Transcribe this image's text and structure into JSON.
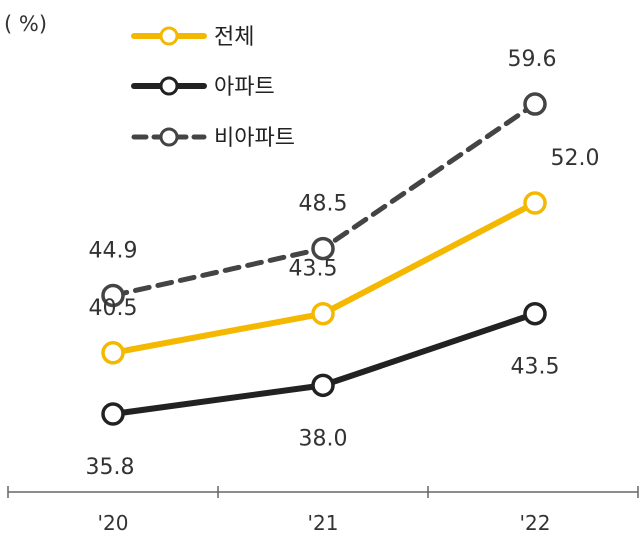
{
  "chart_data": {
    "type": "line",
    "unit_label": "( %)",
    "categories": [
      "'20",
      "'21",
      "'22"
    ],
    "ylim": [
      30,
      62
    ],
    "legend_position": "top",
    "series": [
      {
        "name": "전체",
        "values": [
          40.5,
          43.5,
          52.0
        ],
        "color": "#F5B800",
        "dashed": false
      },
      {
        "name": "아파트",
        "values": [
          35.8,
          38.0,
          43.5
        ],
        "color": "#222222",
        "dashed": false
      },
      {
        "name": "비아파트",
        "values": [
          44.9,
          48.5,
          59.6
        ],
        "color": "#444444",
        "dashed": true
      }
    ],
    "value_labels": [
      {
        "series": 0,
        "index": 0,
        "text": "40.5"
      },
      {
        "series": 0,
        "index": 1,
        "text": "43.5"
      },
      {
        "series": 0,
        "index": 2,
        "text": "52.0"
      },
      {
        "series": 1,
        "index": 0,
        "text": "35.8"
      },
      {
        "series": 1,
        "index": 1,
        "text": "38.0"
      },
      {
        "series": 1,
        "index": 2,
        "text": "43.5"
      },
      {
        "series": 2,
        "index": 0,
        "text": "44.9"
      },
      {
        "series": 2,
        "index": 1,
        "text": "48.5"
      },
      {
        "series": 2,
        "index": 2,
        "text": "59.6"
      }
    ]
  }
}
